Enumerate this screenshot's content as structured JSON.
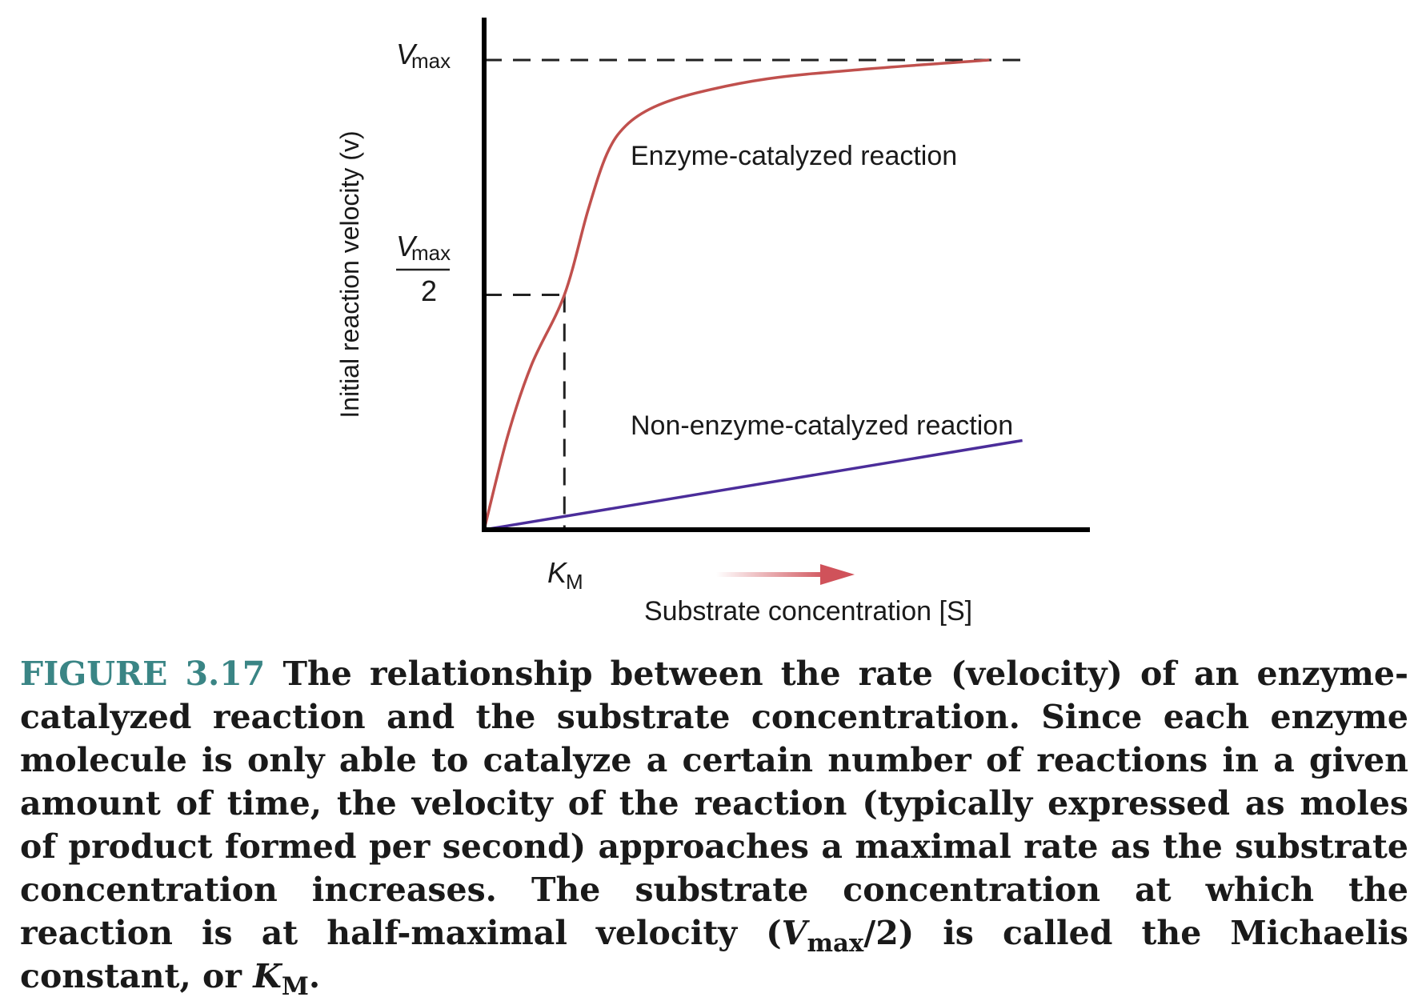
{
  "chart_data": {
    "type": "line",
    "xlabel": "Substrate concentration [S]",
    "ylabel": "Initial reaction velocity (v)",
    "y_ticks": {
      "vmax_symbol": "V",
      "vmax_sub": "max",
      "half_denominator": "2"
    },
    "x_ticks": {
      "km_symbol": "K",
      "km_sub": "M"
    },
    "km_value": 0.17,
    "vmax_value": 1.0,
    "series": [
      {
        "name": "Enzyme-catalyzed reaction",
        "color": "#c0504d",
        "points": [
          [
            0,
            0
          ],
          [
            0.05,
            0.2
          ],
          [
            0.1,
            0.35
          ],
          [
            0.17,
            0.5
          ],
          [
            0.22,
            0.68
          ],
          [
            0.26,
            0.8
          ],
          [
            0.3,
            0.86
          ],
          [
            0.36,
            0.9
          ],
          [
            0.45,
            0.93
          ],
          [
            0.6,
            0.96
          ],
          [
            0.8,
            0.98
          ],
          [
            1.07,
            1.0
          ]
        ]
      },
      {
        "name": "Non-enzyme-catalyzed reaction",
        "color": "#4b2d9a",
        "points": [
          [
            0,
            0
          ],
          [
            1.14,
            0.19
          ]
        ]
      }
    ],
    "guides": "dashed lines at Vmax and Vmax/2, dashed vertical at KM",
    "arrow_color": "#d0525a"
  },
  "caption": {
    "figure_label": "FIGURE 3.17",
    "text_1": " The relationship between the rate (velocity) of an enzyme-catalyzed reaction and the substrate concentration. Since each enzyme molecule is only able to catalyze a certain number of reactions in a given amount of time, the velocity of the reaction (typically expressed as moles of product formed per second) approaches a maximal rate as the substrate concentration increases. The substrate concentration at which the reaction is at half-maximal velocity (",
    "vmax_symbol": "V",
    "vmax_sub": "max",
    "text_2": "/2) is called the Michaelis constant, or ",
    "km_symbol": "K",
    "km_sub": "M",
    "text_3": "."
  }
}
